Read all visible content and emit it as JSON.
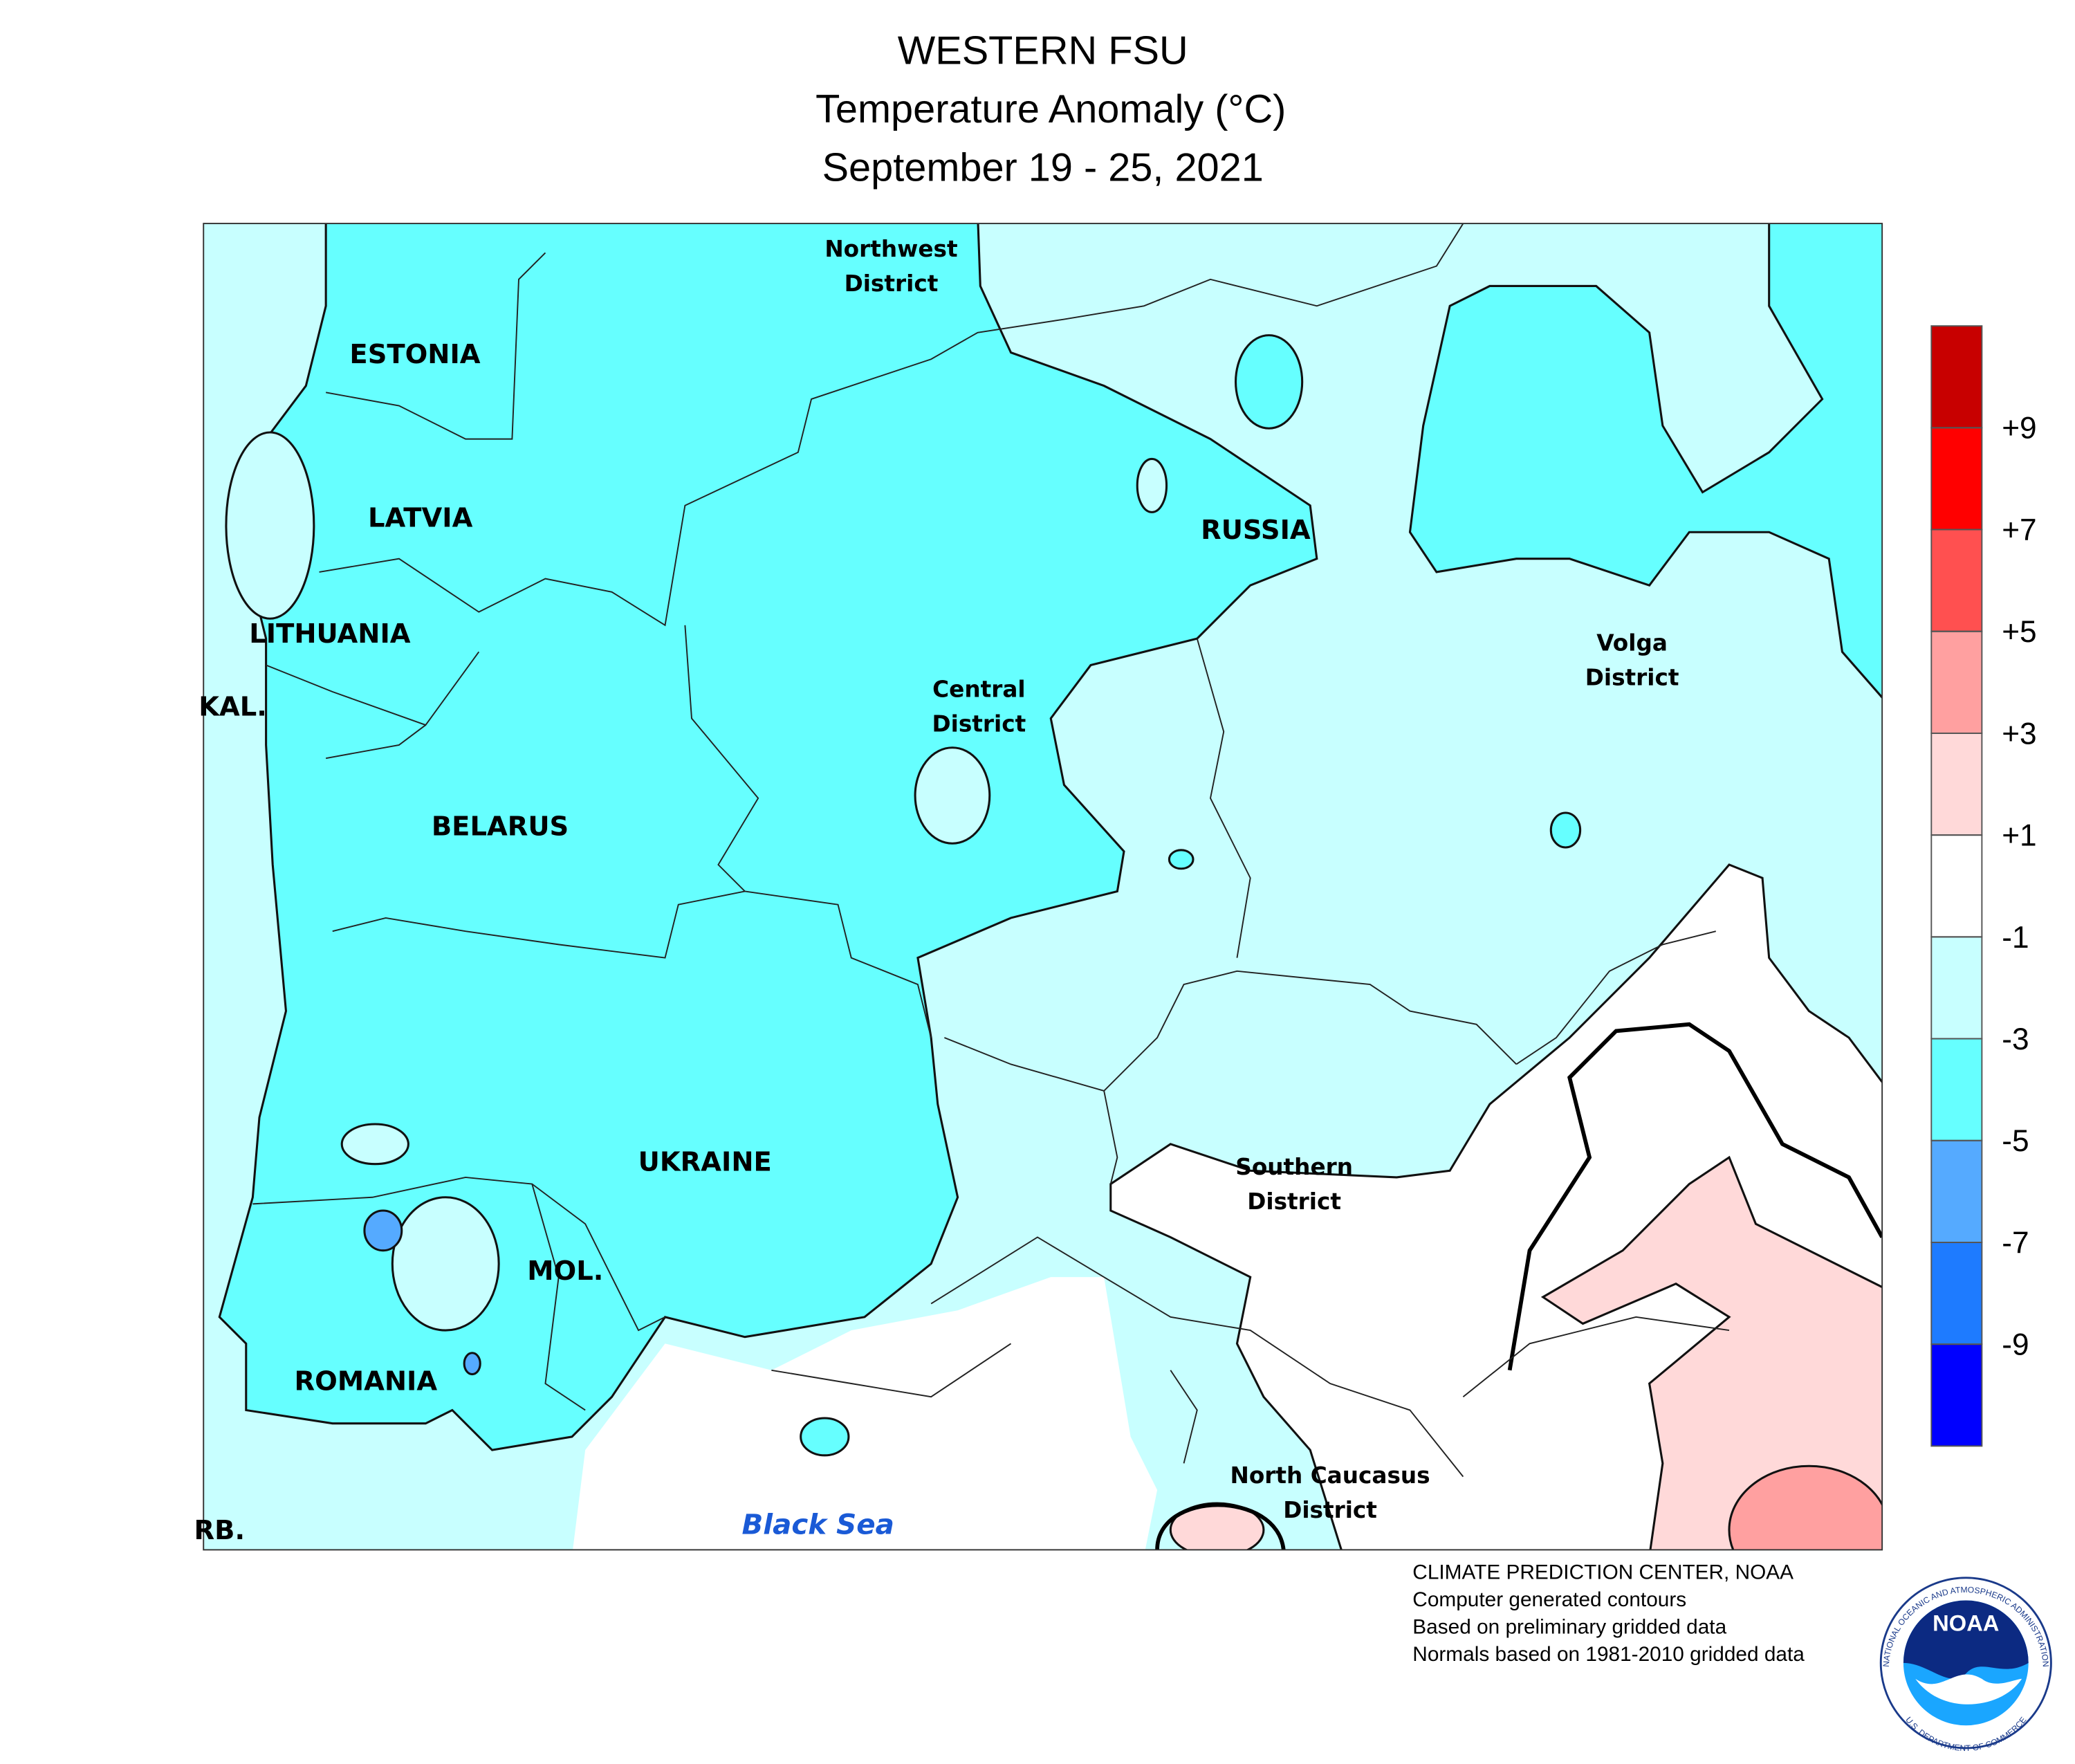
{
  "title": [
    "WESTERN FSU",
    "Temperature Anomaly (°C)",
    "September 19 - 25, 2021"
  ],
  "map_labels": [
    [
      "Northwest",
      "District"
    ],
    [
      "ESTONIA"
    ],
    [
      "LATVIA"
    ],
    [
      "LITHUANIA"
    ],
    [
      "KAL."
    ],
    [
      "BELARUS"
    ],
    [
      "RUSSIA"
    ],
    [
      "Central",
      "District"
    ],
    [
      "Volga",
      "District"
    ],
    [
      "UKRAINE"
    ],
    [
      "MOL."
    ],
    [
      "ROMANIA"
    ],
    [
      "Southern",
      "District"
    ],
    [
      "North Caucasus",
      "District"
    ],
    [
      "RB."
    ],
    [
      "Black Sea"
    ]
  ],
  "legend": {
    "colors": [
      "#c80000",
      "#ff0000",
      "#ff5050",
      "#ffa0a0",
      "#ffd9d9",
      "#ffffff",
      "#c8ffff",
      "#66ffff",
      "#55aaff",
      "#1e7bff",
      "#0000ff"
    ],
    "ticks": [
      {
        "value": 9,
        "label": "+9"
      },
      {
        "value": 7,
        "label": "+7"
      },
      {
        "value": 5,
        "label": "+5"
      },
      {
        "value": 3,
        "label": "+3"
      },
      {
        "value": 1,
        "label": "+1"
      },
      -1,
      -3,
      -5,
      -7,
      -9
    ]
  },
  "footer": [
    "CLIMATE PREDICTION CENTER, NOAA",
    "Computer generated contours",
    "Based on preliminary gridded data",
    "Normals based on 1981-2010 gridded data"
  ],
  "logo": {
    "name": "NOAA",
    "ring_top": "NATIONAL OCEANIC AND ATMOSPHERIC ADMINISTRATION",
    "ring_bottom": "U.S. DEPARTMENT OF COMMERCE"
  }
}
